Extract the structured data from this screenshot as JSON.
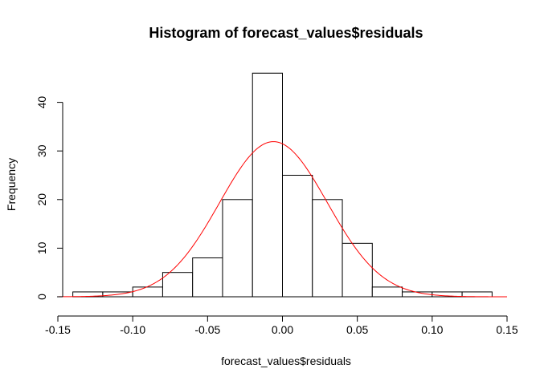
{
  "chart_data": {
    "type": "bar",
    "title": "Histogram of forecast_values$residuals",
    "xlabel": "forecast_values$residuals",
    "ylabel": "Frequency",
    "xlim": [
      -0.15,
      0.15
    ],
    "ylim": [
      0,
      45
    ],
    "x_ticks": [
      "-0.15",
      "-0.10",
      "-0.05",
      "0.00",
      "0.05",
      "0.10",
      "0.15"
    ],
    "y_ticks": [
      "0",
      "10",
      "20",
      "30",
      "40"
    ],
    "bins": [
      {
        "from": -0.14,
        "to": -0.12,
        "count": 1
      },
      {
        "from": -0.12,
        "to": -0.1,
        "count": 1
      },
      {
        "from": -0.1,
        "to": -0.08,
        "count": 2
      },
      {
        "from": -0.08,
        "to": -0.06,
        "count": 5
      },
      {
        "from": -0.06,
        "to": -0.04,
        "count": 8
      },
      {
        "from": -0.04,
        "to": -0.02,
        "count": 20
      },
      {
        "from": -0.02,
        "to": 0.0,
        "count": 46
      },
      {
        "from": 0.0,
        "to": 0.02,
        "count": 25
      },
      {
        "from": 0.02,
        "to": 0.04,
        "count": 20
      },
      {
        "from": 0.04,
        "to": 0.06,
        "count": 11
      },
      {
        "from": 0.06,
        "to": 0.08,
        "count": 2
      },
      {
        "from": 0.08,
        "to": 0.1,
        "count": 1
      },
      {
        "from": 0.1,
        "to": 0.12,
        "count": 1
      },
      {
        "from": 0.12,
        "to": 0.14,
        "count": 1
      }
    ],
    "normal_curve": {
      "mean": -0.006,
      "sd": 0.036,
      "color": "#ff0000"
    },
    "bar_fill": "#ffffff",
    "bar_stroke": "#000000",
    "grid": false,
    "legend": "none"
  }
}
